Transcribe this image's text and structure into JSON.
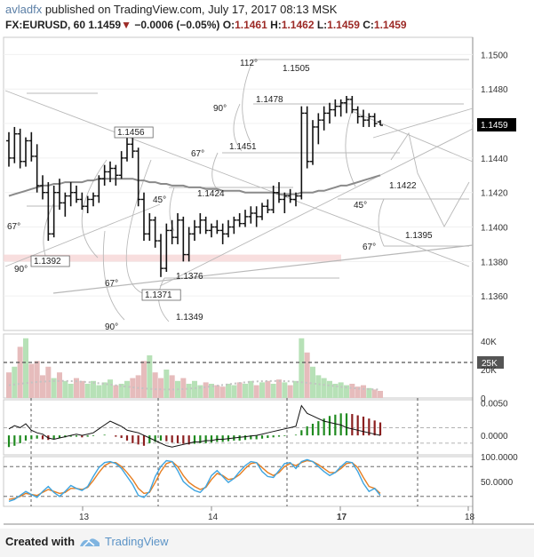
{
  "header": {
    "author": "avladfx",
    "published_text": "published on TradingView.com, July 17, 2017 08:13 MSK",
    "symbol": "FX:EURUSD, 60",
    "last": "1.1459",
    "change": "−0.0006 (−0.05%)",
    "o_label": "O:",
    "o_value": "1.1461",
    "h_label": "H:",
    "h_value": "1.1462",
    "l_label": "L:",
    "l_value": "1.1459",
    "c_label": "C:",
    "c_value": "1.1459"
  },
  "footer": {
    "created_with": "Created with",
    "brand": "TradingView"
  },
  "colors": {
    "up": "#111111",
    "down": "#111111",
    "vol_up": "#b7e1b7",
    "vol_down": "#e6bcbc",
    "macd_up": "#1f8a1f",
    "macd_down": "#8b1f1f",
    "stoch_k": "#3ea4e0",
    "stoch_d": "#e67e22",
    "price_tag": "#000000"
  },
  "chart_data": [
    {
      "type": "candlestick",
      "title": "FX:EURUSD, 60",
      "ylim": [
        1.134,
        1.151
      ],
      "y_ticks": [
        "1.1500",
        "1.1480",
        "1.1460",
        "1.1440",
        "1.1420",
        "1.1400",
        "1.1380",
        "1.1360"
      ],
      "x_ticks": [
        "13",
        "14",
        "17",
        "18"
      ],
      "last_price_tag": "1.1459",
      "bars": [
        [
          1.145,
          1.1455,
          1.1435,
          1.144
        ],
        [
          1.144,
          1.1458,
          1.1437,
          1.1454
        ],
        [
          1.1454,
          1.1457,
          1.1434,
          1.1438
        ],
        [
          1.1438,
          1.1452,
          1.1435,
          1.145
        ],
        [
          1.145,
          1.1455,
          1.1438,
          1.1441
        ],
        [
          1.1441,
          1.1448,
          1.142,
          1.1424
        ],
        [
          1.1424,
          1.143,
          1.1416,
          1.142
        ],
        [
          1.142,
          1.1426,
          1.1392,
          1.1396
        ],
        [
          1.1396,
          1.1424,
          1.1394,
          1.142
        ],
        [
          1.142,
          1.1428,
          1.141,
          1.1414
        ],
        [
          1.1414,
          1.142,
          1.1406,
          1.1418
        ],
        [
          1.1418,
          1.1426,
          1.1412,
          1.142
        ],
        [
          1.142,
          1.1424,
          1.1414,
          1.1416
        ],
        [
          1.1416,
          1.142,
          1.141,
          1.1412
        ],
        [
          1.1412,
          1.1418,
          1.1408,
          1.1416
        ],
        [
          1.1416,
          1.142,
          1.1412,
          1.1418
        ],
        [
          1.1418,
          1.143,
          1.1414,
          1.1428
        ],
        [
          1.1428,
          1.1436,
          1.1424,
          1.1432
        ],
        [
          1.1432,
          1.1438,
          1.1426,
          1.1434
        ],
        [
          1.1434,
          1.1436,
          1.1424,
          1.143
        ],
        [
          1.143,
          1.1444,
          1.1428,
          1.144
        ],
        [
          1.144,
          1.1452,
          1.1438,
          1.1448
        ],
        [
          1.1448,
          1.1456,
          1.144,
          1.1444
        ],
        [
          1.1444,
          1.1446,
          1.1412,
          1.1416
        ],
        [
          1.1416,
          1.142,
          1.1392,
          1.1396
        ],
        [
          1.1396,
          1.1408,
          1.1392,
          1.1404
        ],
        [
          1.1404,
          1.1406,
          1.1388,
          1.1392
        ],
        [
          1.1392,
          1.1396,
          1.1371,
          1.1376
        ],
        [
          1.1376,
          1.1402,
          1.1374,
          1.1398
        ],
        [
          1.1398,
          1.1404,
          1.139,
          1.1394
        ],
        [
          1.1394,
          1.1408,
          1.139,
          1.1404
        ],
        [
          1.1404,
          1.1406,
          1.138,
          1.1384
        ],
        [
          1.1384,
          1.14,
          1.138,
          1.1396
        ],
        [
          1.1396,
          1.1404,
          1.1392,
          1.14
        ],
        [
          1.14,
          1.1408,
          1.1396,
          1.1404
        ],
        [
          1.1404,
          1.1406,
          1.1396,
          1.1398
        ],
        [
          1.1398,
          1.1402,
          1.1394,
          1.14
        ],
        [
          1.14,
          1.1404,
          1.1396,
          1.1398
        ],
        [
          1.1398,
          1.1402,
          1.139,
          1.1396
        ],
        [
          1.1396,
          1.1404,
          1.1394,
          1.14
        ],
        [
          1.14,
          1.1406,
          1.1396,
          1.1404
        ],
        [
          1.1404,
          1.1408,
          1.14,
          1.1402
        ],
        [
          1.1402,
          1.141,
          1.14,
          1.1406
        ],
        [
          1.1406,
          1.1412,
          1.1402,
          1.1408
        ],
        [
          1.1408,
          1.1412,
          1.14,
          1.1406
        ],
        [
          1.1406,
          1.1414,
          1.1404,
          1.1412
        ],
        [
          1.1412,
          1.1416,
          1.1408,
          1.141
        ],
        [
          1.141,
          1.1424,
          1.1408,
          1.142
        ],
        [
          1.142,
          1.1426,
          1.1414,
          1.1416
        ],
        [
          1.1416,
          1.142,
          1.1408,
          1.1418
        ],
        [
          1.1418,
          1.1422,
          1.1414,
          1.1416
        ],
        [
          1.1416,
          1.142,
          1.1412,
          1.1418
        ],
        [
          1.1418,
          1.147,
          1.1416,
          1.1466
        ],
        [
          1.1466,
          1.147,
          1.1434,
          1.1438
        ],
        [
          1.1438,
          1.1462,
          1.1436,
          1.1458
        ],
        [
          1.1458,
          1.1466,
          1.1448,
          1.1462
        ],
        [
          1.1462,
          1.147,
          1.1456,
          1.1466
        ],
        [
          1.1466,
          1.1472,
          1.146,
          1.1468
        ],
        [
          1.1468,
          1.1474,
          1.1464,
          1.147
        ],
        [
          1.147,
          1.1474,
          1.1464,
          1.1472
        ],
        [
          1.1472,
          1.1476,
          1.1466,
          1.1474
        ],
        [
          1.1474,
          1.1476,
          1.1466,
          1.1468
        ],
        [
          1.1468,
          1.147,
          1.146,
          1.1464
        ],
        [
          1.1464,
          1.1468,
          1.1458,
          1.1462
        ],
        [
          1.1462,
          1.1466,
          1.1458,
          1.1464
        ],
        [
          1.1464,
          1.1466,
          1.1458,
          1.146
        ],
        [
          1.1461,
          1.1462,
          1.1459,
          1.1459
        ]
      ],
      "annotations": [
        {
          "text": "1.1456",
          "price": 1.1456
        },
        {
          "text": "1.1392",
          "price": 1.1392
        },
        {
          "text": "1.1371",
          "price": 1.1371
        },
        {
          "text": "112°"
        },
        {
          "text": "1.1505",
          "price": 1.1505
        },
        {
          "text": "90°"
        },
        {
          "text": "1.1478",
          "price": 1.1478
        },
        {
          "text": "67°"
        },
        {
          "text": "1.1451",
          "price": 1.1451
        },
        {
          "text": "45°"
        },
        {
          "text": "1.1424",
          "price": 1.1424
        },
        {
          "text": "1.1422",
          "price": 1.1422
        },
        {
          "text": "45°"
        },
        {
          "text": "67°"
        },
        {
          "text": "1.1395",
          "price": 1.1395
        },
        {
          "text": "90°"
        },
        {
          "text": "67°"
        },
        {
          "text": "1.1376",
          "price": 1.1376
        },
        {
          "text": "1.1349",
          "price": 1.1349
        },
        {
          "text": "90°"
        },
        {
          "text": "67°"
        }
      ]
    },
    {
      "type": "bar",
      "name": "Volume",
      "y_ticks": [
        "40K",
        "20K",
        "0"
      ],
      "ylim": [
        0,
        45000
      ],
      "threshold_label": "25K",
      "threshold": 25000,
      "values": [
        18000,
        22000,
        36000,
        42000,
        24000,
        26000,
        16000,
        22000,
        14000,
        18000,
        12000,
        10000,
        14000,
        12000,
        10000,
        12000,
        9000,
        11000,
        13000,
        9000,
        10000,
        12000,
        14000,
        16000,
        26000,
        30000,
        18000,
        14000,
        20000,
        16000,
        12000,
        14000,
        10000,
        12000,
        9000,
        11000,
        10000,
        9000,
        8000,
        10000,
        9000,
        11000,
        10000,
        12000,
        9000,
        11000,
        12000,
        10000,
        13000,
        11000,
        9000,
        12000,
        42000,
        32000,
        22000,
        16000,
        14000,
        12000,
        10000,
        11000,
        9000,
        10000,
        8000,
        9000,
        7000,
        6000,
        5000
      ]
    },
    {
      "type": "bar",
      "name": "MACD",
      "y_ticks": [
        "0.0050",
        "0.0000"
      ],
      "ylim": [
        -0.003,
        0.0055
      ],
      "values": [
        -0.0018,
        -0.0016,
        -0.0012,
        -0.0008,
        -0.0006,
        -0.0005,
        -0.0006,
        -0.0007,
        -0.0006,
        -0.0004,
        -0.0003,
        -0.0002,
        -0.0002,
        -0.0003,
        -0.0002,
        -0.0001,
        0.0,
        0.0001,
        0.0,
        -0.0002,
        -0.0004,
        -0.0008,
        -0.0012,
        -0.0014,
        -0.0016,
        -0.0012,
        -0.001,
        -0.0008,
        -0.0009,
        -0.0011,
        -0.0012,
        -0.0013,
        -0.0014,
        -0.0013,
        -0.0012,
        -0.0012,
        -0.0011,
        -0.001,
        -0.001,
        -0.0009,
        -0.0008,
        -0.0008,
        -0.0007,
        -0.0006,
        -0.0006,
        -0.0005,
        -0.0004,
        -0.0003,
        -0.0002,
        -0.0001,
        0.0,
        0.0001,
        0.0008,
        0.0014,
        0.0018,
        0.0022,
        0.0026,
        0.003,
        0.0032,
        0.0034,
        0.0034,
        0.0033,
        0.0031,
        0.0029,
        0.0026,
        0.0023,
        0.002
      ],
      "signal": [
        0.001,
        0.0015,
        0.0012,
        0.0018,
        0.0008,
        0.0004,
        0.0002,
        -0.0004,
        -0.0006,
        -0.0004,
        -0.0002,
        0.0,
        0.0002,
        0.0,
        0.0002,
        0.0004,
        0.001,
        0.0016,
        0.0022,
        0.0018,
        0.0014,
        0.0008,
        0.0006,
        0.0004,
        0.0,
        -0.0004,
        -0.0008,
        -0.0012,
        -0.0016,
        -0.0018,
        -0.0016,
        -0.0014,
        -0.0012,
        -0.001,
        -0.001,
        -0.0008,
        -0.0008,
        -0.0006,
        -0.0006,
        -0.0005,
        -0.0004,
        -0.0003,
        -0.0002,
        -0.0001,
        0.0,
        0.0002,
        0.0004,
        0.0006,
        0.0008,
        0.001,
        0.0012,
        0.0014,
        0.0046,
        0.0034,
        0.003,
        0.0026,
        0.0022,
        0.002,
        0.0018,
        0.0016,
        0.0012,
        0.001,
        0.0008,
        0.0006,
        0.0004,
        0.0002,
        0.0
      ]
    },
    {
      "type": "line",
      "name": "Stochastic",
      "y_ticks": [
        "100.0000",
        "50.0000"
      ],
      "ylim": [
        0,
        100
      ],
      "levels": [
        80,
        20
      ],
      "k": [
        10,
        14,
        22,
        30,
        24,
        18,
        30,
        40,
        28,
        20,
        30,
        42,
        36,
        32,
        40,
        60,
        78,
        88,
        90,
        86,
        76,
        60,
        44,
        22,
        18,
        30,
        60,
        80,
        92,
        90,
        72,
        50,
        40,
        32,
        28,
        40,
        62,
        72,
        60,
        48,
        56,
        70,
        82,
        90,
        88,
        70,
        60,
        58,
        72,
        86,
        88,
        76,
        90,
        94,
        90,
        80,
        70,
        62,
        68,
        80,
        90,
        88,
        70,
        46,
        30,
        36,
        22
      ],
      "d": [
        14,
        16,
        20,
        26,
        24,
        22,
        28,
        34,
        30,
        26,
        28,
        36,
        36,
        34,
        38,
        52,
        68,
        82,
        88,
        88,
        80,
        68,
        54,
        36,
        26,
        28,
        48,
        70,
        86,
        90,
        80,
        62,
        48,
        40,
        34,
        38,
        54,
        66,
        62,
        54,
        56,
        64,
        76,
        86,
        88,
        78,
        68,
        62,
        68,
        80,
        86,
        82,
        88,
        92,
        90,
        84,
        76,
        68,
        68,
        76,
        86,
        88,
        78,
        58,
        40,
        36,
        26
      ]
    }
  ]
}
